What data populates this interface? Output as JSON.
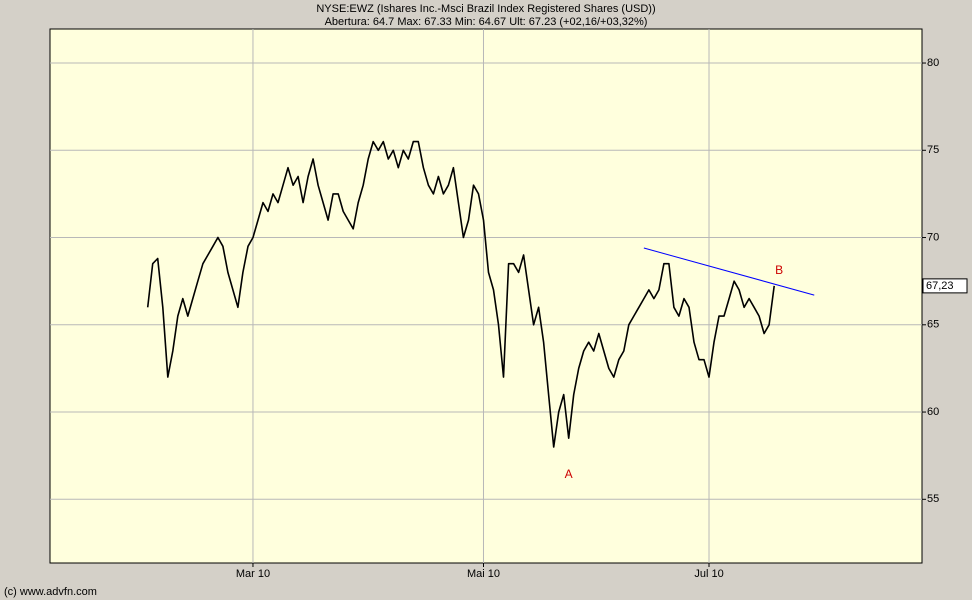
{
  "chart_data": {
    "type": "line",
    "title": "NYSE:EWZ (Ishares Inc.-Msci Brazil Index Registered Shares (USD))",
    "subtitle": "Abertura: 64.7 Max: 67.33 Min: 64.67 Ult: 67.23 (+02,16/+03,32%)",
    "footer": "(c) www.advfn.com",
    "categories": [
      null,
      null,
      null,
      null,
      null,
      null,
      null,
      null,
      null,
      null,
      null,
      null,
      null,
      null,
      null,
      null,
      null,
      null,
      null,
      null,
      null,
      null,
      null,
      null,
      null,
      null,
      null,
      null,
      null,
      null,
      null,
      null,
      null,
      null,
      null,
      null,
      null,
      null,
      null,
      null,
      "Mar 10",
      null,
      null,
      null,
      null,
      null,
      null,
      null,
      null,
      null,
      null,
      null,
      null,
      null,
      null,
      null,
      null,
      null,
      null,
      null,
      null,
      null,
      null,
      null,
      null,
      null,
      null,
      null,
      null,
      null,
      null,
      null,
      null,
      null,
      null,
      null,
      null,
      null,
      null,
      null,
      null,
      null,
      null,
      null,
      null,
      null,
      "Mai 10",
      null,
      null,
      null,
      null,
      null,
      null,
      null,
      null,
      null,
      null,
      null,
      null,
      null,
      null,
      null,
      null,
      null,
      null,
      null,
      null,
      null,
      null,
      null,
      null,
      null,
      null,
      null,
      null,
      null,
      null,
      null,
      null,
      null,
      null,
      null,
      null,
      null,
      null,
      null,
      null,
      null,
      null,
      null,
      null,
      "Jul 10",
      null,
      null,
      null,
      null,
      null,
      null,
      null,
      null,
      null,
      null,
      null,
      null,
      null,
      null,
      null,
      null,
      null,
      null,
      null,
      null,
      null,
      null,
      null,
      null,
      null,
      null,
      null,
      null,
      null,
      null,
      null,
      null,
      null,
      null,
      null,
      null,
      null,
      null,
      null,
      null,
      null,
      null
    ],
    "series": [
      {
        "name": "EWZ",
        "color": "#000000",
        "values": [
          null,
          null,
          null,
          null,
          null,
          null,
          null,
          null,
          null,
          null,
          null,
          null,
          null,
          null,
          null,
          null,
          null,
          null,
          null,
          66,
          68.5,
          68.8,
          66,
          62,
          63.5,
          65.5,
          66.5,
          65.5,
          66.5,
          67.5,
          68.5,
          69,
          69.5,
          70,
          69.5,
          68,
          67,
          66,
          68,
          69.5,
          70,
          71,
          72,
          71.5,
          72.5,
          72,
          73,
          74,
          73,
          73.5,
          72,
          73.5,
          74.5,
          73,
          72,
          71,
          72.5,
          72.5,
          71.5,
          71,
          70.5,
          72,
          73,
          74.5,
          75.5,
          75,
          75.5,
          74.5,
          75,
          74,
          75,
          74.5,
          75.5,
          75.5,
          74,
          73,
          72.5,
          73.5,
          72.5,
          73,
          74,
          72,
          70,
          71,
          73,
          72.5,
          71,
          68,
          67,
          65,
          62,
          68.5,
          68.5,
          68,
          69,
          67,
          65,
          66,
          64,
          61,
          58,
          60,
          61,
          58.5,
          61,
          62.5,
          63.5,
          64,
          63.5,
          64.5,
          63.5,
          62.5,
          62,
          63,
          63.5,
          65,
          65.5,
          66,
          66.5,
          67,
          66.5,
          67,
          68.5,
          68.5,
          66,
          65.5,
          66.5,
          66,
          64,
          63,
          63,
          62,
          64,
          65.5,
          65.5,
          66.5,
          67.5,
          67,
          66,
          66.5,
          66,
          65.5,
          64.5,
          65,
          67.23,
          null,
          null,
          null,
          null,
          null,
          null,
          null,
          null,
          null,
          null,
          null,
          null,
          null,
          null,
          null,
          null,
          null,
          null,
          null,
          null,
          null,
          null,
          null,
          null,
          null,
          null,
          null,
          null,
          null
        ]
      }
    ],
    "trendline": {
      "color": "#0000ff",
      "x": [
        118,
        152
      ],
      "y": [
        69.4,
        66.7
      ]
    },
    "annotations": [
      {
        "text": "A",
        "x": 103,
        "y": 56.4,
        "color": "#cc0000"
      },
      {
        "text": "B",
        "x": 145,
        "y": 68.1,
        "color": "#cc0000"
      }
    ],
    "last_price": {
      "value": 67.23,
      "label": "67,23"
    },
    "ylim": [
      51.35,
      81.95
    ],
    "yticks": [
      55,
      60,
      65,
      70,
      75,
      80
    ],
    "grid": true,
    "background": "#ffffdd"
  }
}
